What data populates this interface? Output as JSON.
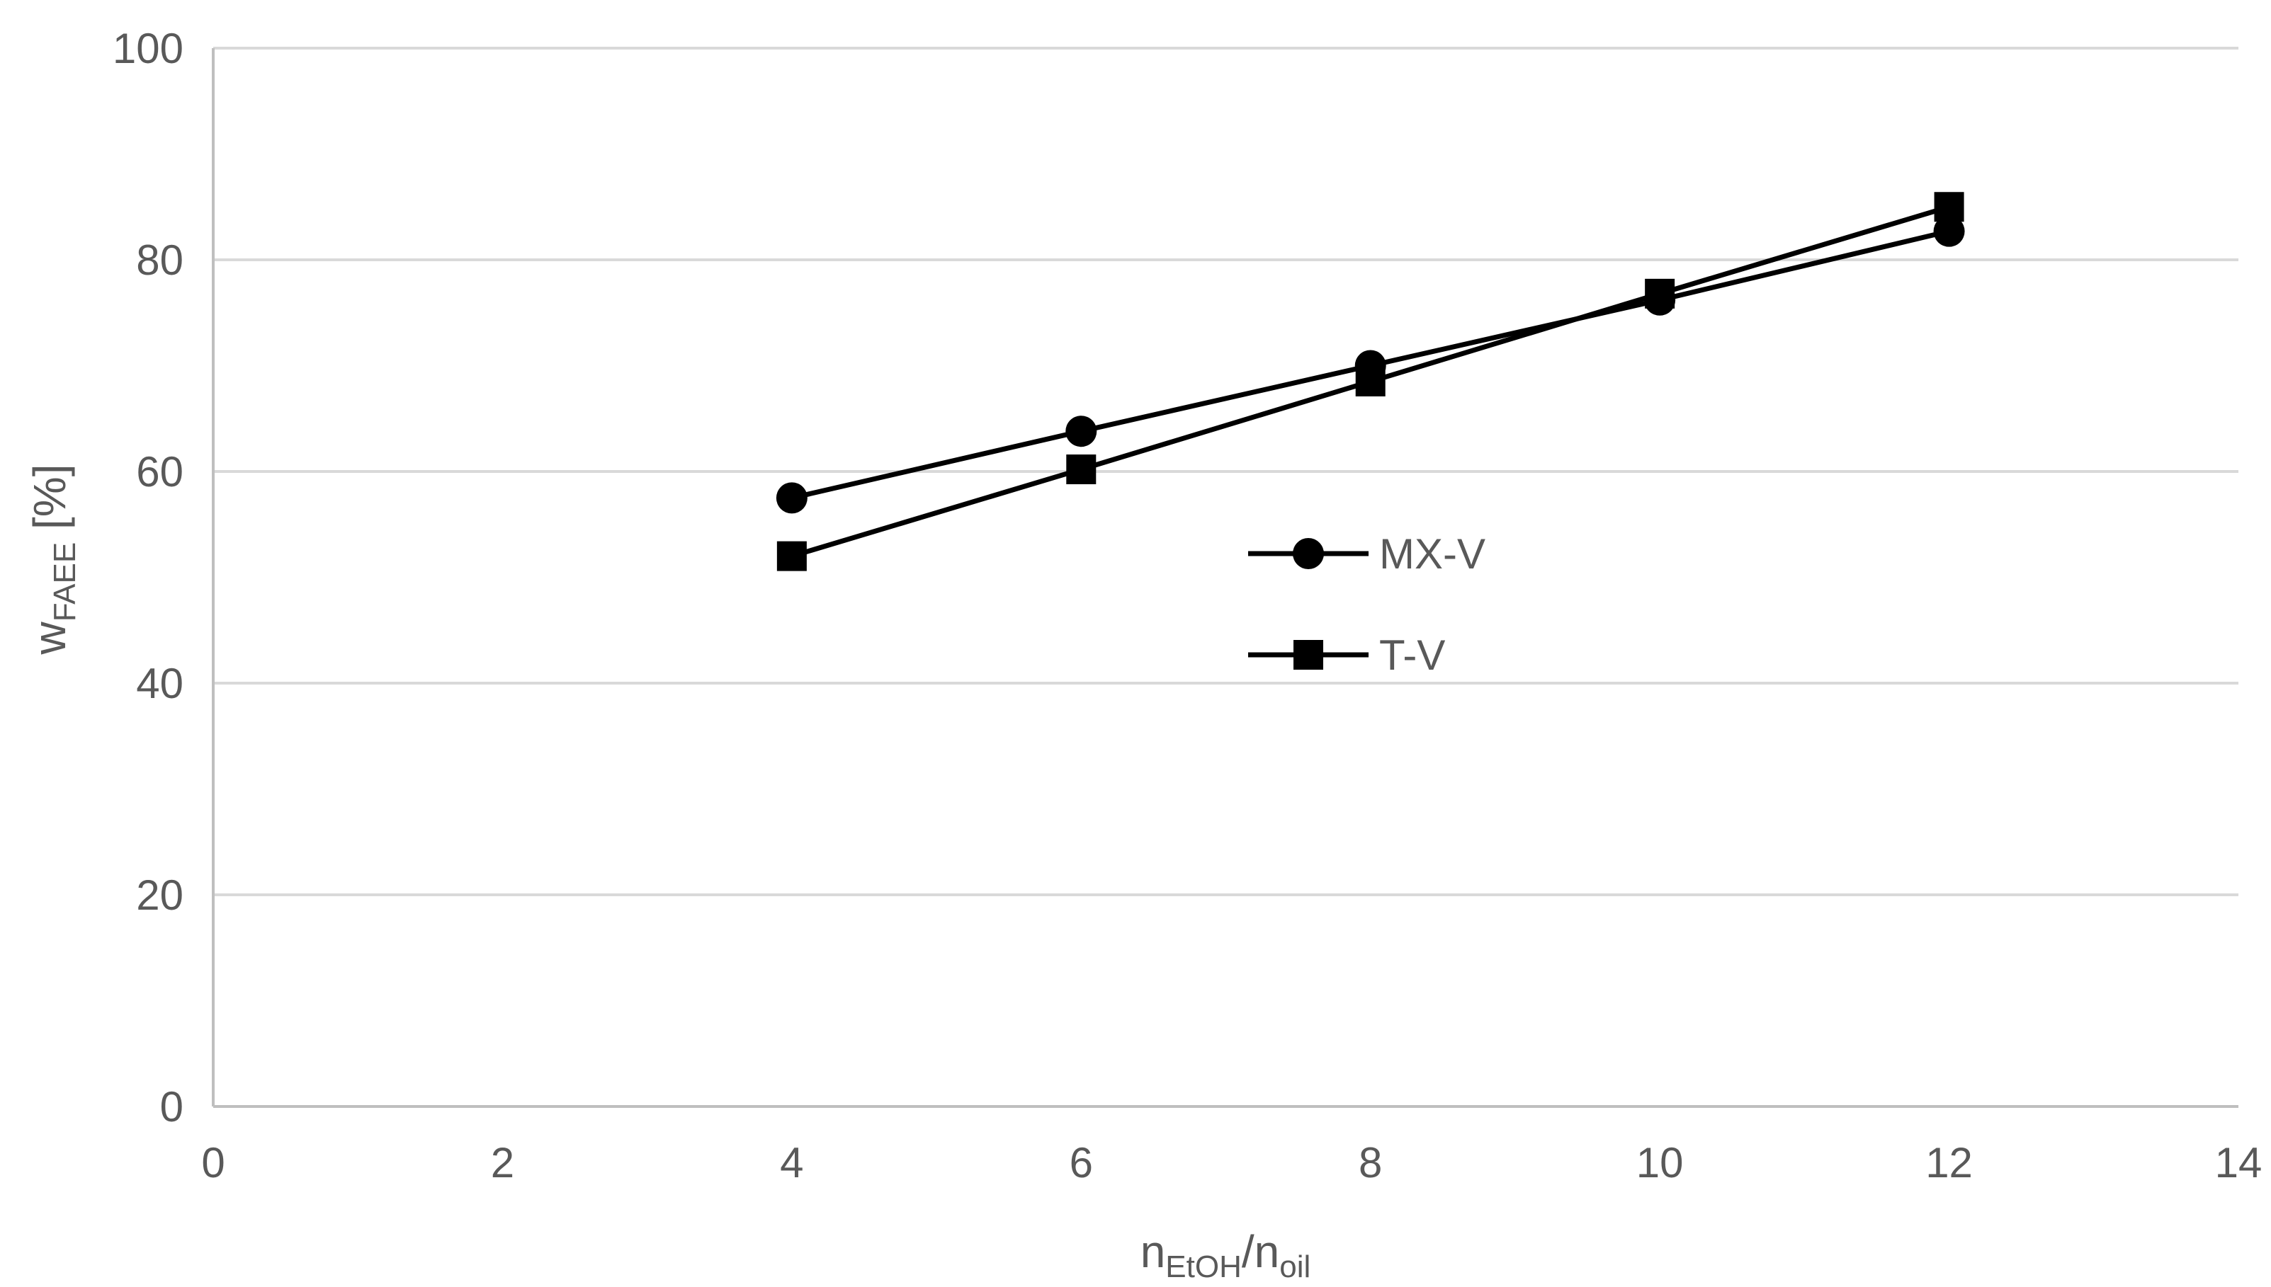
{
  "chart_data": {
    "type": "line",
    "title": "",
    "xlabel": {
      "main": "n",
      "sub": "EtOH",
      "sep": "/n",
      "sub2": "oil"
    },
    "ylabel": {
      "main": "w",
      "sub": "FAEE",
      "suffix": " [%]"
    },
    "xlim": [
      0,
      14
    ],
    "ylim": [
      0,
      100
    ],
    "xticks": [
      0,
      2,
      4,
      6,
      8,
      10,
      12,
      14
    ],
    "yticks": [
      0,
      20,
      40,
      60,
      80,
      100
    ],
    "grid": "horizontal",
    "legend_placement": "center",
    "series": [
      {
        "name": "MX-V",
        "marker": "circle",
        "x": [
          4,
          6,
          8,
          10,
          12
        ],
        "y": [
          57.5,
          63.8,
          70.0,
          76.2,
          82.7
        ]
      },
      {
        "name": "T-V",
        "marker": "square",
        "x": [
          4,
          6,
          8,
          10,
          12
        ],
        "y": [
          52.0,
          60.2,
          68.5,
          76.8,
          85.0
        ]
      }
    ],
    "colors": {
      "line": "#000000",
      "grid": "#d9d9d9",
      "axis": "#bfbfbf",
      "text": "#595959"
    }
  }
}
